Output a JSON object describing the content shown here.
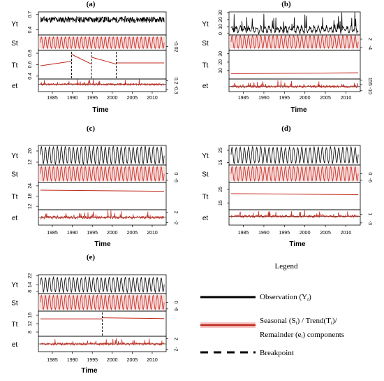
{
  "chart_data": [
    {
      "type": "line",
      "panel_label": "(a)",
      "xlabel": "Time",
      "x_ticks": [
        "1985",
        "1990",
        "1995",
        "2000",
        "2005",
        "2010"
      ],
      "xlim": [
        1981.5,
        2013.5
      ],
      "rows": [
        {
          "name": "Yt",
          "ticks": [
            "0.4",
            "0.7"
          ],
          "tick_values": [
            0.4,
            0.7
          ],
          "side": "left",
          "ylim": [
            0.3,
            0.75
          ],
          "kind": "noise",
          "mean": 0.6,
          "amp": 0.06,
          "seed": 11
        },
        {
          "name": "St",
          "ticks": [
            "-0.02"
          ],
          "tick_values": [
            -0.02
          ],
          "side": "right",
          "ylim": [
            -0.04,
            0.04
          ],
          "kind": "seasonal",
          "amp": 0.03
        },
        {
          "name": "Tt",
          "ticks": [
            "0.4",
            "0.6",
            "0.8"
          ],
          "tick_values": [
            0.4,
            0.6,
            0.8
          ],
          "side": "left",
          "ylim": [
            0.35,
            0.85
          ],
          "kind": "piecewise",
          "segments": [
            [
              1982,
              0.58,
              1989.8,
              0.66
            ],
            [
              1989.8,
              0.78,
              1994.8,
              0.61
            ],
            [
              1994.8,
              0.73,
              2001,
              0.61
            ],
            [
              2001,
              0.63,
              2013,
              0.63
            ]
          ]
        },
        {
          "name": "et",
          "ticks": [
            "-0.3",
            "0.2"
          ],
          "tick_values": [
            -0.3,
            0.2
          ],
          "side": "right",
          "ylim": [
            -0.4,
            0.3
          ],
          "kind": "remainder",
          "amp": 0.12,
          "seed": 5
        }
      ],
      "breakpoints": [
        1989.8,
        1994.8,
        2001.0
      ]
    },
    {
      "type": "line",
      "panel_label": "(b)",
      "xlabel": "Time",
      "x_ticks": [
        "1985",
        "1990",
        "1995",
        "2000",
        "2005",
        "2010"
      ],
      "xlim": [
        1981.5,
        2013.5
      ],
      "rows": [
        {
          "name": "Yt",
          "ticks": [
            "0",
            "10",
            "20",
            "30"
          ],
          "tick_values": [
            0,
            10,
            20,
            30
          ],
          "side": "left",
          "ylim": [
            -2,
            31
          ],
          "kind": "spiky",
          "mean": 6,
          "amp": 6,
          "seed": 23
        },
        {
          "name": "St",
          "ticks": [
            "-4",
            "2"
          ],
          "tick_values": [
            -4,
            2
          ],
          "side": "right",
          "ylim": [
            -6,
            5
          ],
          "kind": "seasonal",
          "amp": 4.5
        },
        {
          "name": "Tt",
          "ticks": [
            "10",
            "20",
            "30"
          ],
          "tick_values": [
            10,
            20,
            30
          ],
          "side": "left",
          "ylim": [
            0,
            34
          ],
          "kind": "piecewise",
          "segments": [
            [
              1982,
              6.2,
              2013,
              7.4
            ]
          ]
        },
        {
          "name": "et",
          "ticks": [
            "-10",
            "5",
            "15"
          ],
          "tick_values": [
            -10,
            5,
            15
          ],
          "side": "right",
          "ylim": [
            -12,
            18
          ],
          "kind": "remainder",
          "amp": 6,
          "seed": 9
        }
      ],
      "breakpoints": []
    },
    {
      "type": "line",
      "panel_label": "(c)",
      "xlabel": "Time",
      "x_ticks": [
        "1985",
        "1990",
        "1995",
        "2000",
        "2005",
        "2010"
      ],
      "xlim": [
        1981.5,
        2013.5
      ],
      "rows": [
        {
          "name": "Yt",
          "ticks": [
            "12",
            "20"
          ],
          "tick_values": [
            12,
            20
          ],
          "side": "left",
          "ylim": [
            10,
            24
          ],
          "kind": "sine",
          "mean": 17,
          "amp": 6
        },
        {
          "name": "St",
          "ticks": [
            "-6",
            "0"
          ],
          "tick_values": [
            -6,
            0
          ],
          "side": "right",
          "ylim": [
            -8,
            8
          ],
          "kind": "seasonal",
          "amp": 6.5
        },
        {
          "name": "Tt",
          "ticks": [
            "12",
            "18",
            "24"
          ],
          "tick_values": [
            12,
            18,
            24
          ],
          "side": "left",
          "ylim": [
            10,
            26
          ],
          "kind": "piecewise",
          "segments": [
            [
              1982,
              21.5,
              2013,
              20.8
            ]
          ]
        },
        {
          "name": "et",
          "ticks": [
            "-2",
            "2"
          ],
          "tick_values": [
            -2,
            2
          ],
          "side": "right",
          "ylim": [
            -3,
            3
          ],
          "kind": "remainder",
          "amp": 1.1,
          "seed": 31
        }
      ],
      "breakpoints": []
    },
    {
      "type": "line",
      "panel_label": "(d)",
      "xlabel": "Time",
      "x_ticks": [
        "1985",
        "1990",
        "1995",
        "2000",
        "2005",
        "2010"
      ],
      "xlim": [
        1981.5,
        2013.5
      ],
      "rows": [
        {
          "name": "Yt",
          "ticks": [
            "15",
            "25"
          ],
          "tick_values": [
            15,
            25
          ],
          "side": "left",
          "ylim": [
            13,
            29
          ],
          "kind": "sine",
          "mean": 21,
          "amp": 6.5
        },
        {
          "name": "St",
          "ticks": [
            "-6",
            "0"
          ],
          "tick_values": [
            -6,
            0
          ],
          "side": "right",
          "ylim": [
            -8,
            8
          ],
          "kind": "seasonal",
          "amp": 6.5
        },
        {
          "name": "Tt",
          "ticks": [
            "15",
            "25"
          ],
          "tick_values": [
            15,
            25
          ],
          "side": "left",
          "ylim": [
            10,
            30
          ],
          "kind": "piecewise",
          "segments": [
            [
              1982,
              21.8,
              2013,
              21.0
            ]
          ]
        },
        {
          "name": "et",
          "ticks": [
            "-3",
            "1"
          ],
          "tick_values": [
            -3,
            1
          ],
          "side": "right",
          "ylim": [
            -4,
            3
          ],
          "kind": "remainder",
          "amp": 1.2,
          "seed": 47
        }
      ],
      "breakpoints": []
    },
    {
      "type": "line",
      "panel_label": "(e)",
      "xlabel": "Time",
      "x_ticks": [
        "1985",
        "1990",
        "1995",
        "2000",
        "2005",
        "2010"
      ],
      "xlim": [
        1981.5,
        2013.5
      ],
      "rows": [
        {
          "name": "Yt",
          "ticks": [
            "8",
            "14",
            "22"
          ],
          "tick_values": [
            8,
            14,
            22
          ],
          "side": "left",
          "ylim": [
            6,
            23
          ],
          "kind": "sine",
          "mean": 14,
          "amp": 6.5
        },
        {
          "name": "St",
          "ticks": [
            "-6",
            "0"
          ],
          "tick_values": [
            -6,
            0
          ],
          "side": "right",
          "ylim": [
            -8,
            8
          ],
          "kind": "seasonal",
          "amp": 6.5
        },
        {
          "name": "Tt",
          "ticks": [
            "8",
            "12",
            "16"
          ],
          "tick_values": [
            8,
            12,
            16
          ],
          "side": "left",
          "ylim": [
            6,
            18
          ],
          "kind": "piecewise",
          "segments": [
            [
              1982,
              14.3,
              1997.5,
              14.3
            ],
            [
              1997.5,
              14.8,
              2013,
              14.4
            ]
          ]
        },
        {
          "name": "et",
          "ticks": [
            "-2",
            "2"
          ],
          "tick_values": [
            -2,
            2
          ],
          "side": "right",
          "ylim": [
            -3,
            3
          ],
          "kind": "remainder",
          "amp": 1.0,
          "seed": 59
        }
      ],
      "breakpoints": [
        1997.5
      ]
    }
  ],
  "legend": {
    "title": "Legend",
    "observation": "Observation (Y",
    "observation_sub": "t",
    "component_line1_a": "Seasonal (S",
    "component_line1_b": ") / Trend(T",
    "component_line1_c": ")/",
    "component_line2_a": "Remainder (e",
    "component_line2_b": ") components",
    "sub_t": "t",
    "breakpoint": "Breakpoint"
  },
  "colors": {
    "observation": "#000000",
    "component": "#c0281c",
    "component_band": "#f6c6c6",
    "axis": "#000000"
  }
}
